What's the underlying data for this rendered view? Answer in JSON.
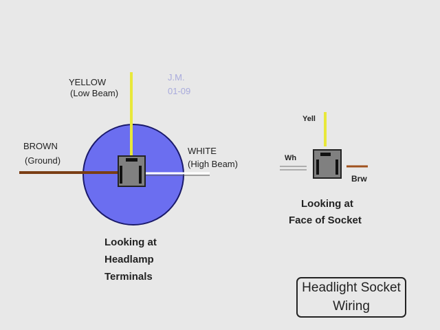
{
  "left": {
    "yellow": "YELLOW",
    "yellow_sub": "(Low Beam)",
    "brown": "BROWN",
    "brown_sub": "(Ground)",
    "white": "WHITE",
    "white_sub": "(High Beam)",
    "initials": "J.M.",
    "date": "01-09",
    "caption": [
      "Looking at",
      "Headlamp",
      "Terminals"
    ]
  },
  "right": {
    "yell": "Yell",
    "wh": "Wh",
    "brw": "Brw",
    "caption": [
      "Looking at",
      "Face of Socket"
    ]
  },
  "title": [
    "Headlight Socket",
    "Wiring"
  ],
  "colors": {
    "lamp": "#6b6ef0",
    "yellow": "#e8e83a",
    "brown": "#7a3e14",
    "socket": "#808080"
  }
}
